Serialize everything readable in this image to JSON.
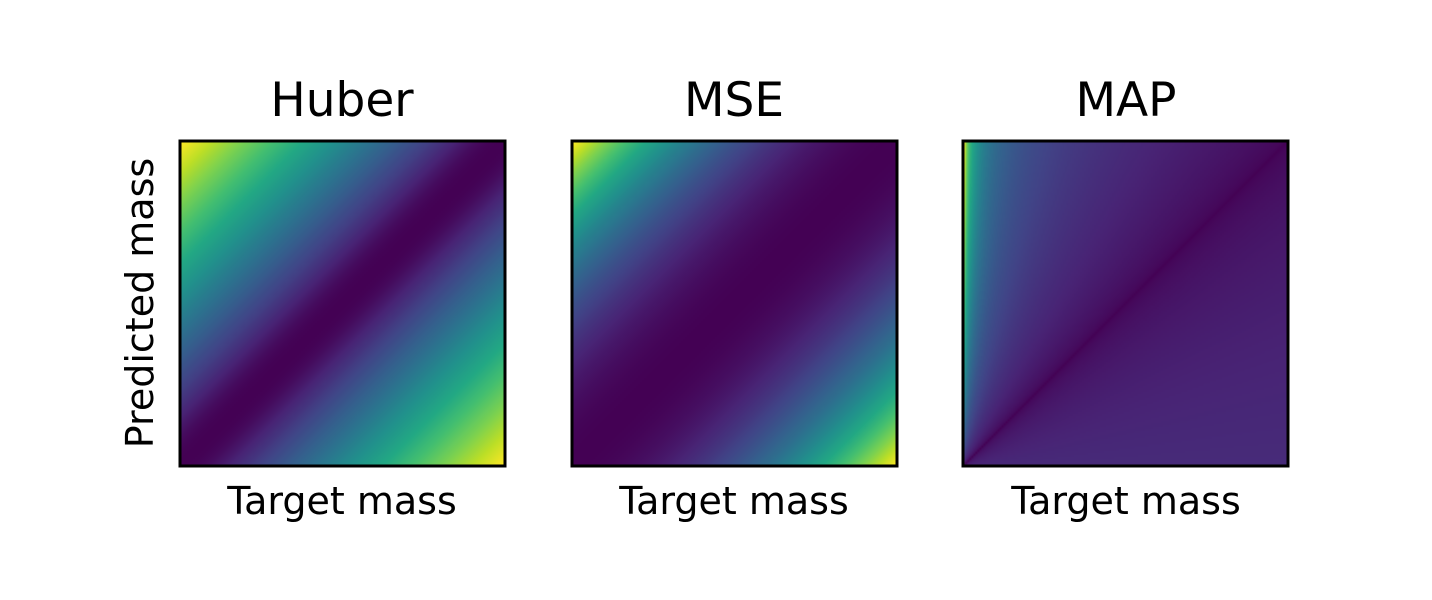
{
  "chart_data": {
    "type": "heatmap",
    "colormap": "viridis",
    "ylabel": "Predicted mass",
    "panels": [
      {
        "title": "Huber",
        "xlabel": "Target mass",
        "loss": "huber"
      },
      {
        "title": "MSE",
        "xlabel": "Target mass",
        "loss": "mse"
      },
      {
        "title": "MAP",
        "xlabel": "Target mass",
        "loss": "map"
      }
    ],
    "x_ticks": "none",
    "y_ticks": "none",
    "grid": false,
    "legend": "none",
    "colorbar": false
  }
}
